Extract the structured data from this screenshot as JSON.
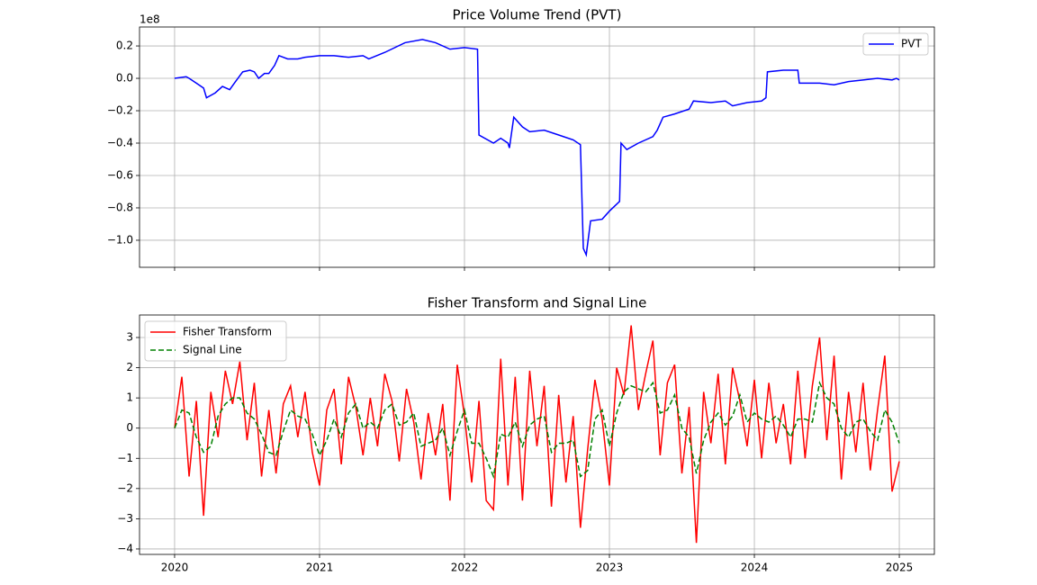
{
  "chart_data": [
    {
      "type": "line",
      "title": "Price Volume Trend (PVT)",
      "offset_label": "1e8",
      "grid": true,
      "legend": "upper right",
      "show_xtick_labels": false,
      "x": [
        2020.0,
        2020.08,
        2020.1,
        2020.15,
        2020.2,
        2020.22,
        2020.28,
        2020.33,
        2020.38,
        2020.42,
        2020.47,
        2020.52,
        2020.55,
        2020.58,
        2020.62,
        2020.65,
        2020.69,
        2020.72,
        2020.78,
        2020.85,
        2020.9,
        2021.0,
        2021.1,
        2021.2,
        2021.3,
        2021.34,
        2021.45,
        2021.59,
        2021.71,
        2021.8,
        2021.9,
        2022.0,
        2022.09,
        2022.1,
        2022.2,
        2022.25,
        2022.3,
        2022.31,
        2022.34,
        2022.4,
        2022.45,
        2022.55,
        2022.65,
        2022.75,
        2022.8,
        2022.82,
        2022.84,
        2022.87,
        2022.95,
        2023.0,
        2023.07,
        2023.08,
        2023.12,
        2023.2,
        2023.3,
        2023.33,
        2023.37,
        2023.45,
        2023.55,
        2023.58,
        2023.7,
        2023.8,
        2023.85,
        2023.95,
        2024.05,
        2024.08,
        2024.09,
        2024.2,
        2024.3,
        2024.31,
        2024.45,
        2024.55,
        2024.65,
        2024.75,
        2024.85,
        2024.95,
        2024.98,
        2025.0
      ],
      "series": [
        {
          "name": "PVT",
          "color": "#0000ff",
          "linestyle": "solid",
          "values": [
            0.0,
            0.01,
            0.0,
            -0.03,
            -0.06,
            -0.12,
            -0.09,
            -0.05,
            -0.07,
            -0.02,
            0.04,
            0.05,
            0.04,
            0.0,
            0.03,
            0.03,
            0.08,
            0.14,
            0.12,
            0.12,
            0.13,
            0.14,
            0.14,
            0.13,
            0.14,
            0.12,
            0.16,
            0.22,
            0.24,
            0.22,
            0.18,
            0.19,
            0.18,
            -0.35,
            -0.4,
            -0.37,
            -0.4,
            -0.43,
            -0.24,
            -0.3,
            -0.33,
            -0.32,
            -0.35,
            -0.38,
            -0.41,
            -1.05,
            -1.09,
            -0.88,
            -0.87,
            -0.82,
            -0.76,
            -0.4,
            -0.44,
            -0.4,
            -0.36,
            -0.32,
            -0.24,
            -0.22,
            -0.19,
            -0.14,
            -0.15,
            -0.14,
            -0.17,
            -0.15,
            -0.14,
            -0.12,
            0.04,
            0.05,
            0.05,
            -0.03,
            -0.03,
            -0.04,
            -0.02,
            -0.01,
            0.0,
            -0.01,
            0.0,
            -0.01
          ]
        }
      ],
      "xlim": [
        2019.758,
        2025.242
      ],
      "xticks": [
        2020,
        2021,
        2022,
        2023,
        2024,
        2025
      ],
      "ylim": [
        -1.167,
        0.317
      ],
      "yticks": [
        {
          "value": -1.0,
          "label": "−1.0"
        },
        {
          "value": -0.8,
          "label": "−0.8"
        },
        {
          "value": -0.6,
          "label": "−0.6"
        },
        {
          "value": -0.4,
          "label": "−0.4"
        },
        {
          "value": -0.2,
          "label": "−0.2"
        },
        {
          "value": 0.0,
          "label": "0.0"
        },
        {
          "value": 0.2,
          "label": "0.2"
        }
      ]
    },
    {
      "type": "line",
      "title": "Fisher Transform and Signal Line",
      "grid": true,
      "legend": "upper left",
      "show_xtick_labels": true,
      "x": [
        2020.0,
        2020.05,
        2020.1,
        2020.15,
        2020.2,
        2020.25,
        2020.3,
        2020.35,
        2020.4,
        2020.45,
        2020.5,
        2020.55,
        2020.6,
        2020.65,
        2020.7,
        2020.75,
        2020.8,
        2020.85,
        2020.9,
        2020.95,
        2021.0,
        2021.05,
        2021.1,
        2021.15,
        2021.2,
        2021.25,
        2021.3,
        2021.35,
        2021.4,
        2021.45,
        2021.5,
        2021.55,
        2021.6,
        2021.65,
        2021.7,
        2021.75,
        2021.8,
        2021.85,
        2021.9,
        2021.95,
        2022.0,
        2022.05,
        2022.1,
        2022.15,
        2022.2,
        2022.25,
        2022.3,
        2022.35,
        2022.4,
        2022.45,
        2022.5,
        2022.55,
        2022.6,
        2022.65,
        2022.7,
        2022.75,
        2022.8,
        2022.85,
        2022.9,
        2022.95,
        2023.0,
        2023.05,
        2023.1,
        2023.15,
        2023.2,
        2023.25,
        2023.3,
        2023.35,
        2023.4,
        2023.45,
        2023.5,
        2023.55,
        2023.6,
        2023.65,
        2023.7,
        2023.75,
        2023.8,
        2023.85,
        2023.9,
        2023.95,
        2024.0,
        2024.05,
        2024.1,
        2024.15,
        2024.2,
        2024.25,
        2024.3,
        2024.35,
        2024.4,
        2024.45,
        2024.5,
        2024.55,
        2024.6,
        2024.65,
        2024.7,
        2024.75,
        2024.8,
        2024.85,
        2024.9,
        2024.95,
        2025.0
      ],
      "series": [
        {
          "name": "Fisher Transform",
          "color": "#ff0000",
          "linestyle": "solid",
          "values": [
            0,
            1.7,
            -1.6,
            0.9,
            -2.9,
            1.2,
            -0.3,
            1.9,
            0.8,
            2.2,
            -0.4,
            1.5,
            -1.6,
            0.6,
            -1.5,
            0.8,
            1.4,
            -0.3,
            1.2,
            -0.8,
            -1.9,
            0.6,
            1.3,
            -1.2,
            1.7,
            0.7,
            -0.9,
            1.0,
            -0.6,
            1.8,
            0.9,
            -1.1,
            1.3,
            0.2,
            -1.7,
            0.5,
            -0.9,
            0.8,
            -2.4,
            2.1,
            0.4,
            -1.8,
            0.9,
            -2.4,
            -2.7,
            2.3,
            -1.9,
            1.7,
            -2.4,
            1.9,
            -0.6,
            1.4,
            -2.6,
            1.1,
            -1.8,
            0.4,
            -3.3,
            -0.7,
            1.6,
            0.3,
            -1.9,
            2.0,
            1.1,
            3.4,
            0.6,
            1.8,
            2.9,
            -0.9,
            1.5,
            2.1,
            -1.5,
            0.7,
            -3.8,
            1.2,
            -0.5,
            1.8,
            -1.2,
            2.0,
            0.9,
            -0.6,
            1.6,
            -1.0,
            1.5,
            -0.5,
            0.8,
            -1.2,
            1.9,
            -1.0,
            1.4,
            3.0,
            -0.4,
            2.4,
            -1.7,
            1.2,
            -0.8,
            1.5,
            -1.4,
            0.6,
            2.4,
            -2.1,
            -1.1
          ]
        },
        {
          "name": "Signal Line",
          "color": "#008000",
          "linestyle": "dashed",
          "values": [
            0,
            0.6,
            0.5,
            -0.3,
            -0.8,
            -0.6,
            0.4,
            0.8,
            1.0,
            1.0,
            0.5,
            0.3,
            -0.2,
            -0.8,
            -0.9,
            -0.1,
            0.6,
            0.4,
            0.3,
            -0.2,
            -0.9,
            -0.4,
            0.3,
            -0.3,
            0.5,
            0.8,
            0.0,
            0.2,
            0.0,
            0.6,
            0.8,
            0.1,
            0.2,
            0.5,
            -0.6,
            -0.5,
            -0.4,
            0.0,
            -0.9,
            -0.1,
            0.6,
            -0.5,
            -0.5,
            -1.0,
            -1.6,
            -0.2,
            -0.3,
            0.2,
            -0.6,
            0.1,
            0.3,
            0.4,
            -0.8,
            -0.5,
            -0.5,
            -0.4,
            -1.6,
            -1.4,
            0.3,
            0.6,
            -0.6,
            0.5,
            1.2,
            1.4,
            1.3,
            1.2,
            1.5,
            0.5,
            0.6,
            1.1,
            0.0,
            -0.3,
            -1.5,
            -0.4,
            0.2,
            0.5,
            0.1,
            0.4,
            1.1,
            0.2,
            0.5,
            0.3,
            0.2,
            0.4,
            0.1,
            -0.3,
            0.3,
            0.3,
            0.2,
            1.5,
            1.0,
            0.8,
            0.0,
            -0.3,
            0.2,
            0.3,
            -0.1,
            -0.4,
            0.6,
            0.2,
            -0.5
          ]
        }
      ],
      "xlim": [
        2019.758,
        2025.242
      ],
      "xticks": [
        2020,
        2021,
        2022,
        2023,
        2024,
        2025
      ],
      "ylim": [
        -4.18,
        3.745
      ],
      "yticks": [
        {
          "value": -4,
          "label": "−4"
        },
        {
          "value": -3,
          "label": "−3"
        },
        {
          "value": -2,
          "label": "−2"
        },
        {
          "value": -1,
          "label": "−1"
        },
        0,
        1,
        2,
        3
      ]
    }
  ]
}
